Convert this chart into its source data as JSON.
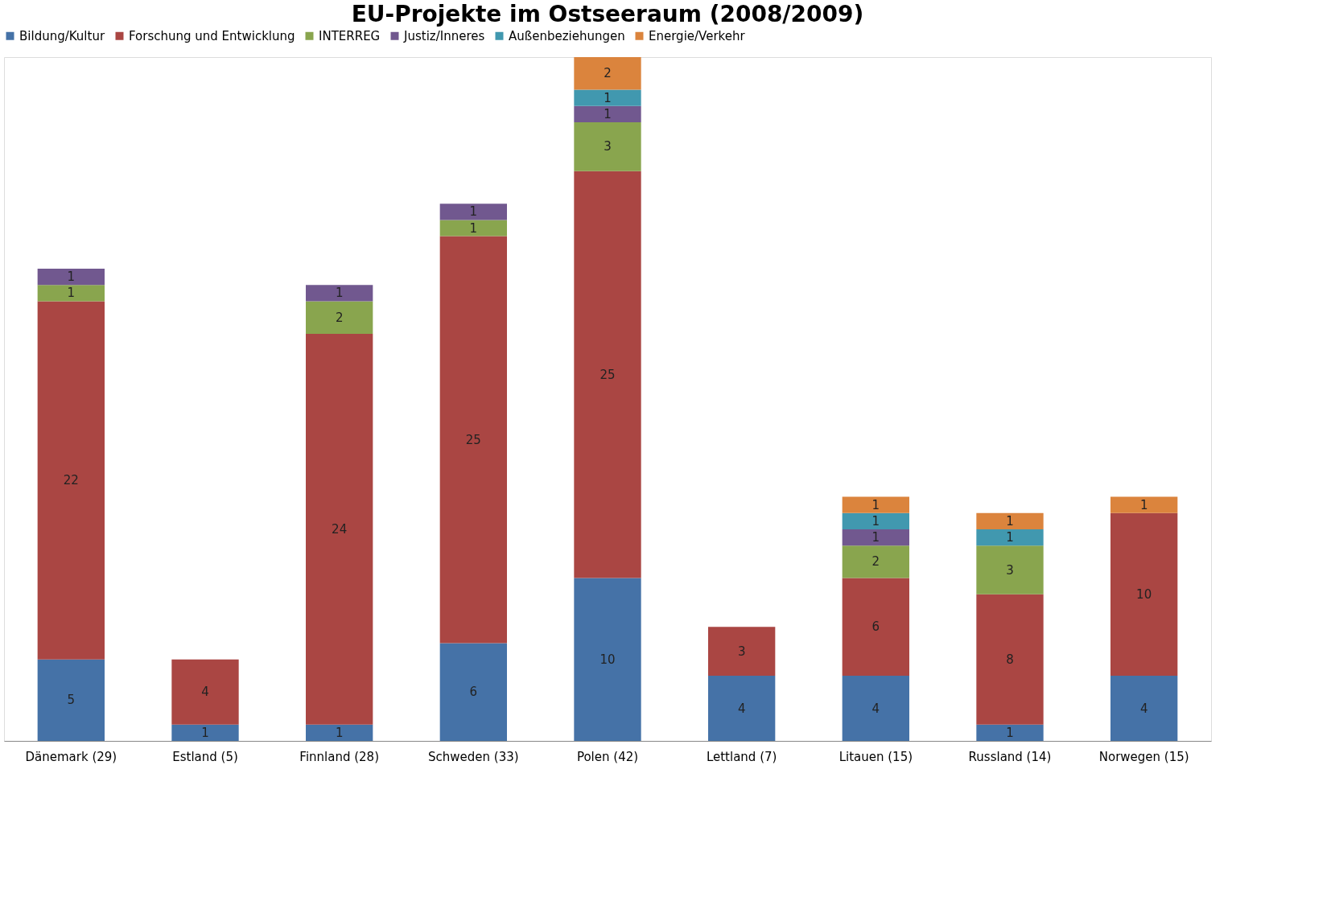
{
  "chart_data": {
    "type": "bar",
    "title": "EU-Projekte im Ostseeraum (2008/2009)",
    "stacked": true,
    "data_labels": true,
    "legend": "top",
    "grid": false,
    "tick_labels": "x",
    "categories": [
      "Dänemark (29)",
      "Estland (5)",
      "Finnland (28)",
      "Schweden (33)",
      "Polen (42)",
      "Lettland (7)",
      "Litauen (15)",
      "Russland (14)",
      "Norwegen (15)"
    ],
    "series": [
      {
        "name": "Bildung/Kultur",
        "color": "#4572a7",
        "values": [
          5,
          1,
          1,
          6,
          10,
          4,
          4,
          1,
          4
        ]
      },
      {
        "name": "Forschung und Entwicklung",
        "color": "#aa4643",
        "values": [
          22,
          4,
          24,
          25,
          25,
          3,
          6,
          8,
          10
        ]
      },
      {
        "name": "INTERREG",
        "color": "#89a54e",
        "values": [
          1,
          null,
          2,
          1,
          3,
          null,
          2,
          3,
          null
        ]
      },
      {
        "name": "Justiz/Inneres",
        "color": "#71588f",
        "values": [
          1,
          null,
          1,
          1,
          1,
          null,
          1,
          null,
          null
        ]
      },
      {
        "name": "Außenbeziehungen",
        "color": "#4198af",
        "values": [
          null,
          null,
          null,
          null,
          1,
          null,
          1,
          1,
          null
        ]
      },
      {
        "name": "Energie/Verkehr",
        "color": "#db843d",
        "values": [
          null,
          null,
          null,
          null,
          2,
          null,
          1,
          1,
          1
        ]
      }
    ]
  }
}
